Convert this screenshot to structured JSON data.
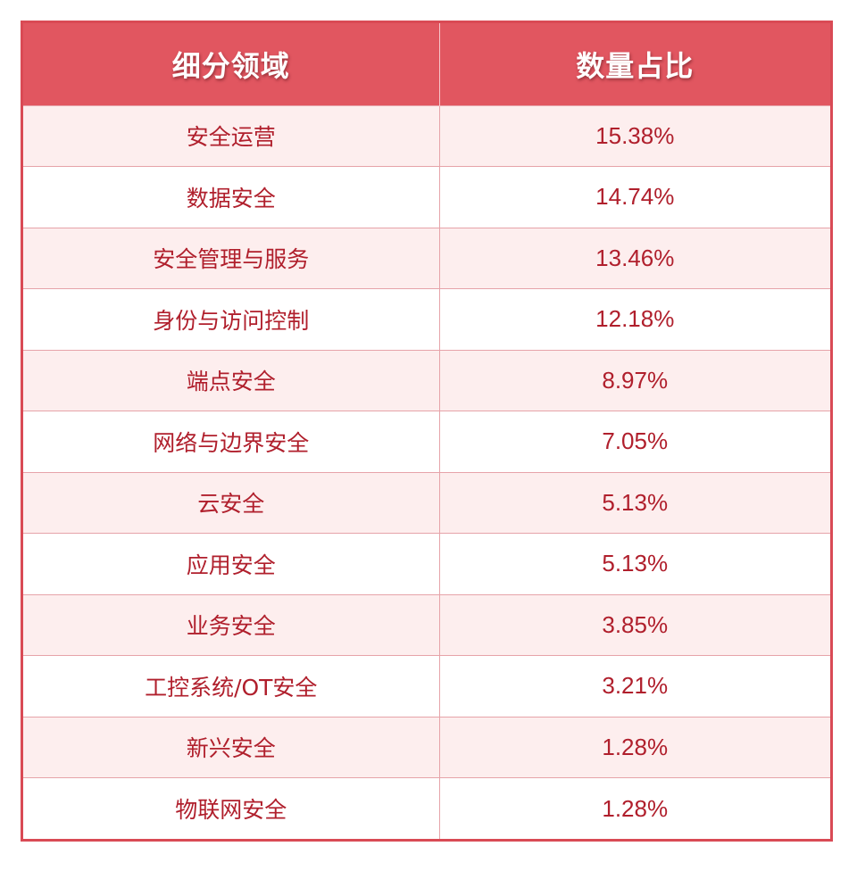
{
  "table": {
    "headers": [
      "细分领域",
      "数量占比"
    ],
    "rows": [
      {
        "category": "安全运营",
        "share": "15.38%"
      },
      {
        "category": "数据安全",
        "share": "14.74%"
      },
      {
        "category": "安全管理与服务",
        "share": "13.46%"
      },
      {
        "category": "身份与访问控制",
        "share": "12.18%"
      },
      {
        "category": "端点安全",
        "share": "8.97%"
      },
      {
        "category": "网络与边界安全",
        "share": "7.05%"
      },
      {
        "category": "云安全",
        "share": "5.13%"
      },
      {
        "category": "应用安全",
        "share": "5.13%"
      },
      {
        "category": "业务安全",
        "share": "3.85%"
      },
      {
        "category": "工控系统/OT安全",
        "share": "3.21%"
      },
      {
        "category": "新兴安全",
        "share": "1.28%"
      },
      {
        "category": "物联网安全",
        "share": "1.28%"
      }
    ]
  },
  "colors": {
    "header_bg": "#e15660",
    "border": "#d94a55",
    "text": "#b01f2c",
    "row_alt_bg": "#fdeeee"
  }
}
